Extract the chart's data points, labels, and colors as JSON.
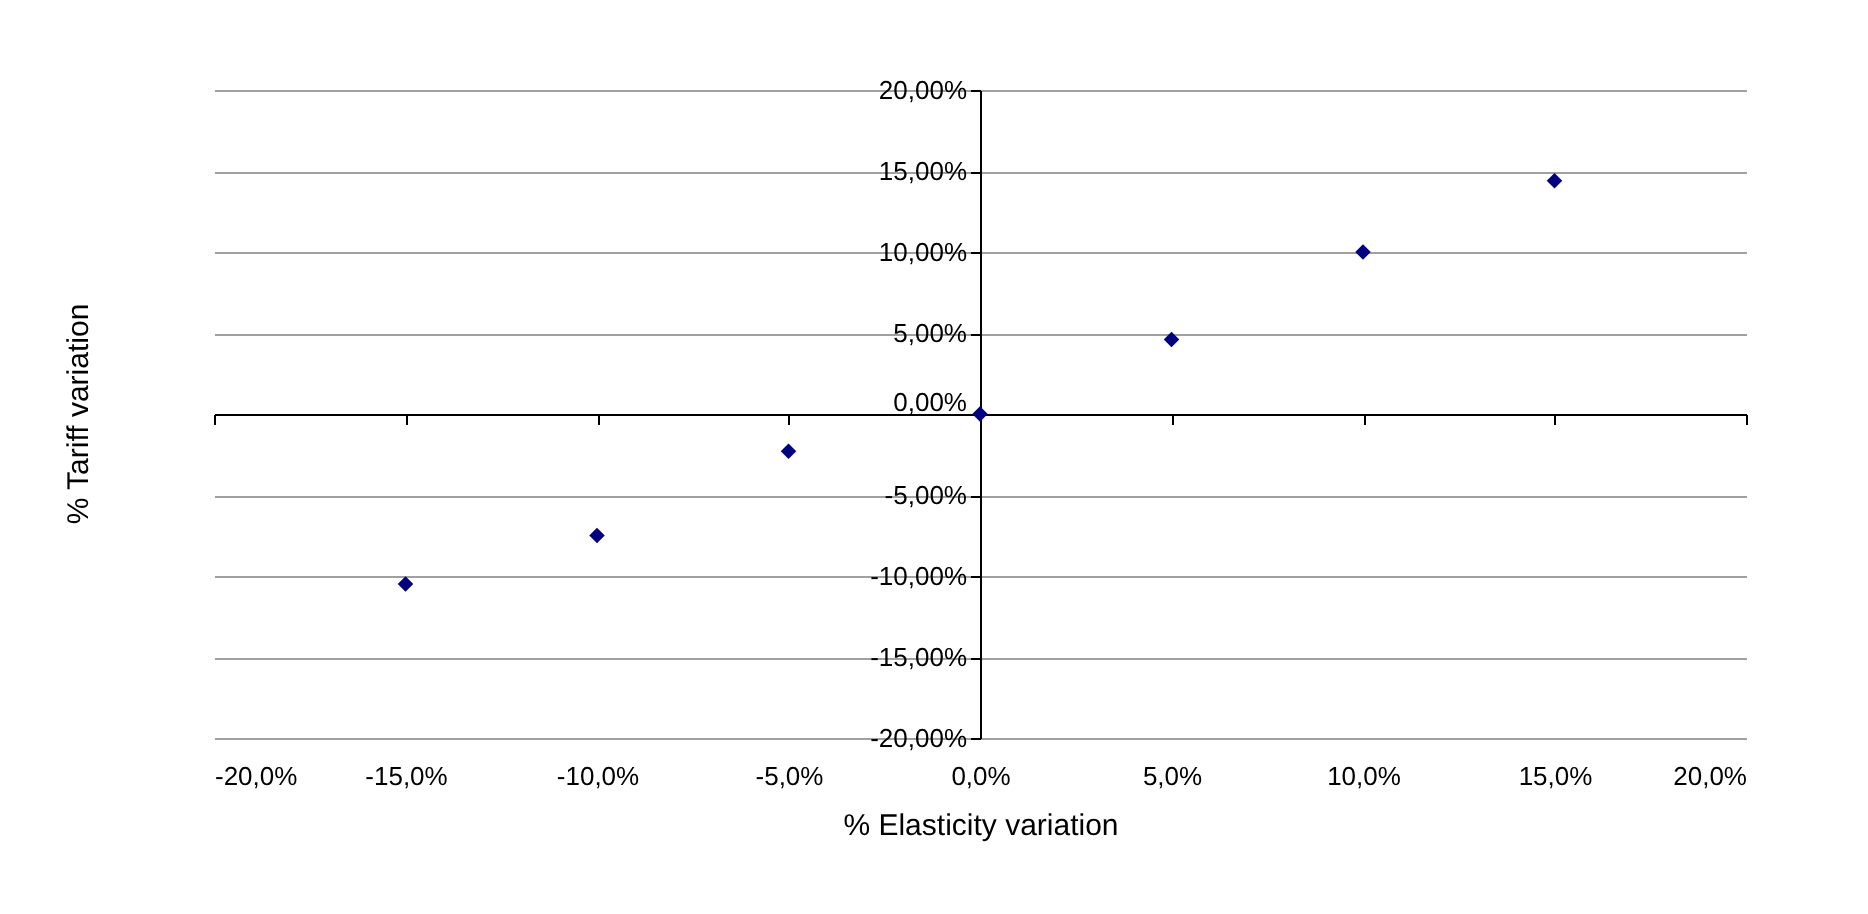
{
  "chart_data": {
    "type": "scatter",
    "xlabel": "% Elasticity variation",
    "ylabel": "% Tariff variation",
    "x": [
      -15,
      -10,
      -5,
      0,
      5,
      10,
      15
    ],
    "series": [
      {
        "color": "#000080",
        "values": [
          -10.5,
          -7.5,
          -2.3,
          0,
          4.6,
          10,
          14.4
        ]
      }
    ],
    "xlim": [
      -20,
      20
    ],
    "ylim": [
      -20,
      20
    ],
    "xticks": [
      {
        "value": -20,
        "label": "-20,0%"
      },
      {
        "value": -15,
        "label": "-15,0%"
      },
      {
        "value": -10,
        "label": "-10,0%"
      },
      {
        "value": -5,
        "label": "-5,0%"
      },
      {
        "value": 0,
        "label": "0,0%"
      },
      {
        "value": 5,
        "label": "5,0%"
      },
      {
        "value": 10,
        "label": "10,0%"
      },
      {
        "value": 15,
        "label": "15,0%"
      },
      {
        "value": 20,
        "label": "20,0%"
      }
    ],
    "yticks": [
      {
        "value": -20,
        "label": "-20,00%"
      },
      {
        "value": -15,
        "label": "-15,00%"
      },
      {
        "value": -10,
        "label": "-10,00%"
      },
      {
        "value": -5,
        "label": "-5,00%"
      },
      {
        "value": 0,
        "label": "0,00%"
      },
      {
        "value": 5,
        "label": "5,00%"
      },
      {
        "value": 10,
        "label": "10,00%"
      },
      {
        "value": 15,
        "label": "15,00%"
      },
      {
        "value": 20,
        "label": "20,00%"
      }
    ],
    "grid": "y",
    "marker": "diamond"
  }
}
